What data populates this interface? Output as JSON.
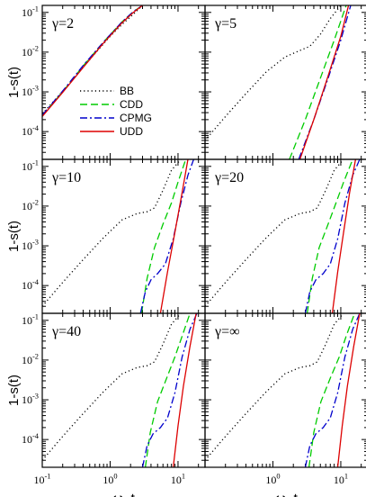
{
  "chart_data": {
    "type": "line",
    "xlabel_main": "ω",
    "xlabel_sub": "D",
    "xlabel_tail": "t",
    "ylabel": "1-s(t)",
    "xscale": "log",
    "yscale": "log",
    "xlim": [
      0.1,
      25
    ],
    "ylim": [
      2e-05,
      0.15
    ],
    "x_ticks": [
      {
        "v": 0.1,
        "base": "10",
        "exp": "-1"
      },
      {
        "v": 1,
        "base": "10",
        "exp": "0"
      },
      {
        "v": 10,
        "base": "10",
        "exp": "1"
      }
    ],
    "y_ticks": [
      {
        "v": 0.0001,
        "base": "10",
        "exp": "-4"
      },
      {
        "v": 0.001,
        "base": "10",
        "exp": "-3"
      },
      {
        "v": 0.01,
        "base": "10",
        "exp": "-2"
      },
      {
        "v": 0.1,
        "base": "10",
        "exp": "-1"
      }
    ],
    "legend": {
      "location": "center-right of top-left panel",
      "entries": [
        {
          "key": "BB",
          "label": "BB"
        },
        {
          "key": "CDD",
          "label": "CDD"
        },
        {
          "key": "CPMG",
          "label": "CPMG"
        },
        {
          "key": "UDD",
          "label": "UDD"
        }
      ]
    },
    "style": {
      "BB": {
        "color": "#000000",
        "dash": "1.2 3"
      },
      "CDD": {
        "color": "#00cc00",
        "dash": "8 4"
      },
      "CPMG": {
        "color": "#0000cc",
        "dash": "8 3 2 3"
      },
      "UDD": {
        "color": "#dd0000",
        "dash": ""
      }
    },
    "panels": [
      {
        "label": "γ=2",
        "series": [
          {
            "key": "BB",
            "x": [
              0.1,
              0.15,
              0.25,
              0.4,
              0.7,
              1.0,
              1.5,
              2.2,
              3.0
            ],
            "y": [
              0.00028,
              0.0006,
              0.0016,
              0.0042,
              0.0125,
              0.025,
              0.05,
              0.09,
              0.15
            ]
          },
          {
            "key": "CDD",
            "x": [
              0.1,
              0.2,
              0.4,
              0.8,
              1.5,
              2.2,
              3.0
            ],
            "y": [
              0.00025,
              0.001,
              0.0045,
              0.018,
              0.058,
              0.105,
              0.15
            ]
          },
          {
            "key": "CPMG",
            "x": [
              0.1,
              0.2,
              0.4,
              0.8,
              1.5,
              2.2,
              3.0
            ],
            "y": [
              0.00026,
              0.00105,
              0.0046,
              0.018,
              0.058,
              0.105,
              0.15
            ]
          },
          {
            "key": "UDD",
            "x": [
              0.1,
              0.2,
              0.4,
              0.8,
              1.5,
              2.2,
              3.0
            ],
            "y": [
              0.00024,
              0.00097,
              0.0041,
              0.017,
              0.055,
              0.1,
              0.15
            ]
          }
        ]
      },
      {
        "label": "γ=5",
        "series": [
          {
            "key": "BB",
            "x": [
              0.1,
              0.2,
              0.4,
              0.8,
              1.5,
              2.5,
              3.5,
              5.0,
              7.0,
              10.0
            ],
            "y": [
              6e-05,
              0.00024,
              0.0009,
              0.0032,
              0.0075,
              0.011,
              0.014,
              0.028,
              0.07,
              0.15
            ]
          },
          {
            "key": "CDD",
            "x": [
              1.75,
              3.0,
              5.0,
              8.0,
              12.0
            ],
            "y": [
              2e-05,
              0.0002,
              0.0022,
              0.02,
              0.15
            ]
          },
          {
            "key": "CPMG",
            "x": [
              2.4,
              4.0,
              6.5,
              10.0,
              14.0
            ],
            "y": [
              2e-05,
              0.0002,
              0.0022,
              0.02,
              0.15
            ]
          },
          {
            "key": "UDD",
            "x": [
              2.5,
              4.0,
              6.5,
              10.0,
              13.0
            ],
            "y": [
              2e-05,
              0.0002,
              0.0025,
              0.025,
              0.15
            ]
          }
        ]
      },
      {
        "label": "γ=10",
        "series": [
          {
            "key": "BB",
            "x": [
              0.1,
              0.2,
              0.4,
              0.8,
              1.5,
              2.5,
              3.5,
              4.5,
              6.0,
              8.0,
              11.0
            ],
            "y": [
              3e-05,
              0.00012,
              0.00045,
              0.0016,
              0.0045,
              0.0065,
              0.0072,
              0.009,
              0.025,
              0.08,
              0.15
            ]
          },
          {
            "key": "CDD",
            "x": [
              2.9,
              3.5,
              4.5,
              6.0,
              8.0,
              10.0,
              13.0
            ],
            "y": [
              2e-05,
              0.00015,
              0.0009,
              0.0035,
              0.012,
              0.04,
              0.15
            ]
          },
          {
            "key": "CPMG",
            "x": [
              2.8,
              3.3,
              4.0,
              5.0,
              6.5,
              8.5,
              11.0,
              14.0,
              17.0
            ],
            "y": [
              2e-05,
              7e-05,
              0.00014,
              0.0002,
              0.00035,
              0.0015,
              0.012,
              0.06,
              0.15
            ]
          },
          {
            "key": "UDD",
            "x": [
              5.5,
              7.0,
              9.0,
              11.5,
              14.0
            ],
            "y": [
              2e-05,
              0.00022,
              0.0022,
              0.022,
              0.15
            ]
          }
        ]
      },
      {
        "label": "γ=20",
        "series": [
          {
            "key": "BB",
            "x": [
              0.1,
              0.2,
              0.4,
              0.8,
              1.5,
              2.5,
              3.5,
              4.5,
              6.0,
              8.0,
              11.0
            ],
            "y": [
              3e-05,
              0.00012,
              0.00045,
              0.0016,
              0.0045,
              0.0065,
              0.0072,
              0.009,
              0.025,
              0.08,
              0.15
            ]
          },
          {
            "key": "CDD",
            "x": [
              3.2,
              3.8,
              4.8,
              6.5,
              8.5,
              11.0,
              15.0
            ],
            "y": [
              2e-05,
              0.00015,
              0.0009,
              0.0035,
              0.012,
              0.04,
              0.15
            ]
          },
          {
            "key": "CPMG",
            "x": [
              3.0,
              3.5,
              4.3,
              5.5,
              7.0,
              9.0,
              11.5,
              15.0,
              19.0
            ],
            "y": [
              2e-05,
              7e-05,
              0.00014,
              0.0002,
              0.00035,
              0.0015,
              0.012,
              0.06,
              0.15
            ]
          },
          {
            "key": "UDD",
            "x": [
              7.5,
              9.0,
              11.0,
              13.5,
              16.5
            ],
            "y": [
              2e-05,
              0.00022,
              0.0022,
              0.022,
              0.15
            ]
          }
        ]
      },
      {
        "label": "γ=40",
        "series": [
          {
            "key": "BB",
            "x": [
              0.1,
              0.2,
              0.4,
              0.8,
              1.5,
              2.5,
              3.5,
              4.5,
              6.0,
              8.0,
              11.0
            ],
            "y": [
              3e-05,
              0.00012,
              0.00045,
              0.0016,
              0.0045,
              0.0065,
              0.0072,
              0.009,
              0.025,
              0.08,
              0.15
            ]
          },
          {
            "key": "CDD",
            "x": [
              3.3,
              3.9,
              5.0,
              6.8,
              9.0,
              11.5,
              15.0
            ],
            "y": [
              2e-05,
              0.00015,
              0.0009,
              0.0035,
              0.012,
              0.04,
              0.15
            ]
          },
          {
            "key": "CPMG",
            "x": [
              3.0,
              3.5,
              4.3,
              5.5,
              7.0,
              9.0,
              11.5,
              15.0,
              19.0
            ],
            "y": [
              2e-05,
              7e-05,
              0.00014,
              0.0002,
              0.00035,
              0.0015,
              0.012,
              0.06,
              0.15
            ]
          },
          {
            "key": "UDD",
            "x": [
              8.5,
              10.0,
              12.0,
              15.0,
              18.5
            ],
            "y": [
              2e-05,
              0.00022,
              0.0022,
              0.022,
              0.15
            ]
          }
        ]
      },
      {
        "label": "γ=∞",
        "series": [
          {
            "key": "BB",
            "x": [
              0.1,
              0.2,
              0.4,
              0.8,
              1.5,
              2.5,
              3.5,
              4.5,
              6.0,
              8.0,
              11.0
            ],
            "y": [
              3e-05,
              0.00012,
              0.00045,
              0.0016,
              0.0045,
              0.0065,
              0.0072,
              0.009,
              0.025,
              0.08,
              0.15
            ]
          },
          {
            "key": "CDD",
            "x": [
              3.4,
              4.0,
              5.1,
              7.0,
              9.5,
              12.0,
              16.0
            ],
            "y": [
              2e-05,
              0.00015,
              0.0009,
              0.0035,
              0.012,
              0.04,
              0.15
            ]
          },
          {
            "key": "CPMG",
            "x": [
              3.0,
              3.5,
              4.3,
              5.5,
              7.0,
              9.0,
              11.5,
              15.0,
              19.0
            ],
            "y": [
              2e-05,
              7e-05,
              0.00014,
              0.0002,
              0.00035,
              0.0015,
              0.012,
              0.06,
              0.15
            ]
          },
          {
            "key": "UDD",
            "x": [
              9.0,
              10.5,
              12.5,
              15.5,
              19.0
            ],
            "y": [
              2e-05,
              0.00022,
              0.0022,
              0.022,
              0.15
            ]
          }
        ]
      }
    ]
  }
}
